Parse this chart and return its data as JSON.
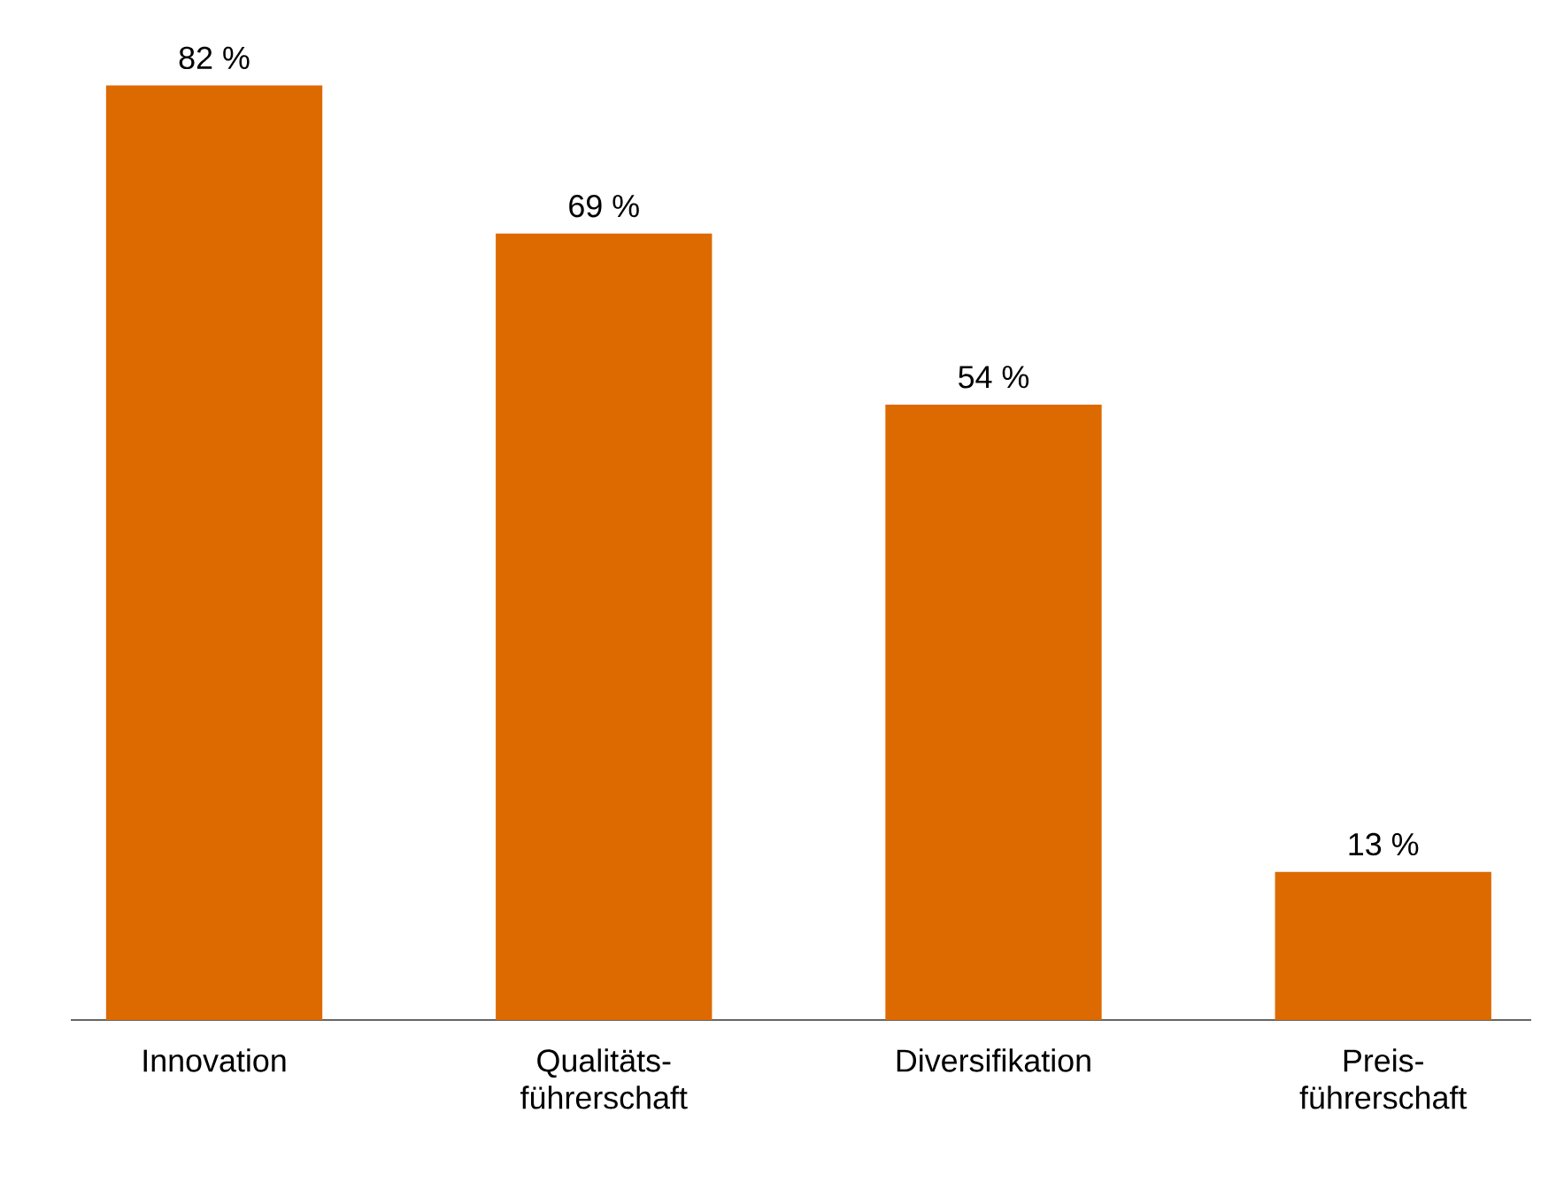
{
  "chart_data": {
    "type": "bar",
    "categories": [
      "Innovation",
      "Qualitäts-führerschaft",
      "Diversifikation",
      "Preis-führerschaft"
    ],
    "values": [
      82,
      69,
      54,
      13
    ],
    "value_labels": [
      "82 %",
      "69 %",
      "54 %",
      "13 %"
    ],
    "color": "#dd6a00"
  }
}
